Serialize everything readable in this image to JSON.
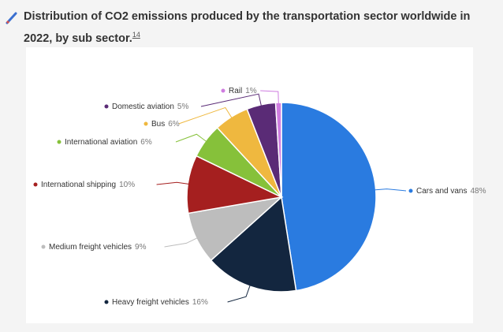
{
  "chart_data": {
    "type": "pie",
    "title": "Distribution of CO2 emissions produced by the transportation sector worldwide in 2022, by sub sector.",
    "footnote_ref": "14",
    "categories": [
      "Cars and vans",
      "Heavy freight vehicles",
      "Medium freight vehicles",
      "International shipping",
      "International aviation",
      "Bus",
      "Domestic aviation",
      "Rail"
    ],
    "values": [
      48,
      16,
      9,
      10,
      6,
      6,
      5,
      1
    ],
    "value_labels": [
      "48%",
      "16%",
      "9%",
      "10%",
      "6%",
      "6%",
      "5%",
      "1%"
    ],
    "colors": [
      "#2a7be0",
      "#13263f",
      "#bdbdbd",
      "#a51f1f",
      "#86c13a",
      "#efb83f",
      "#5a2b76",
      "#cf7de0"
    ]
  }
}
